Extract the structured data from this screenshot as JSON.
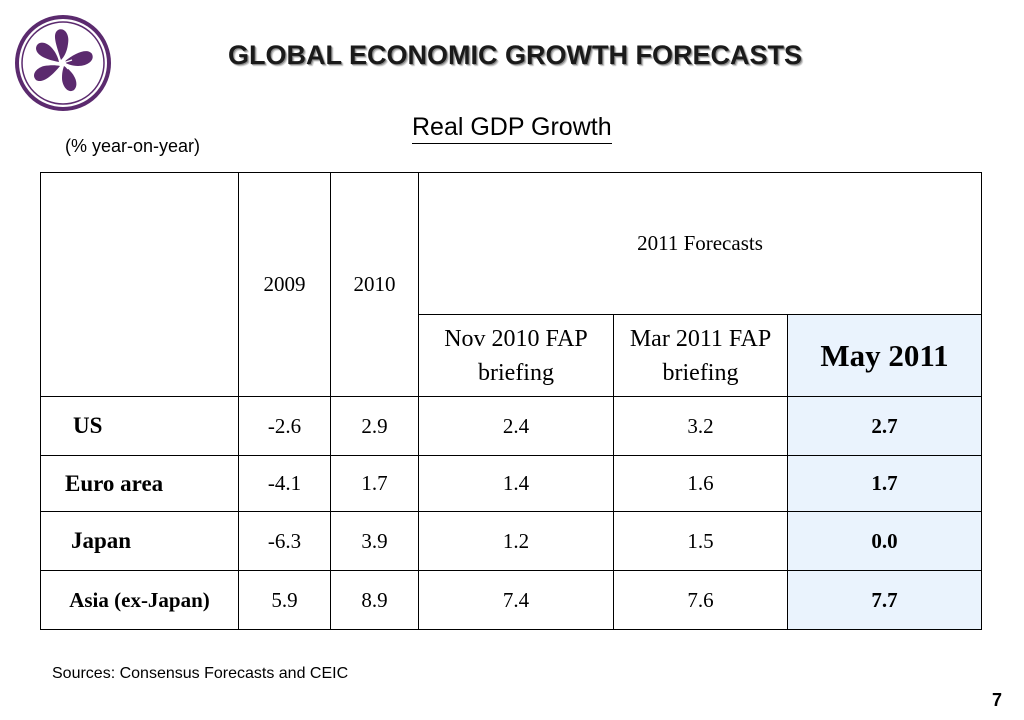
{
  "header": {
    "title": "GLOBAL ECONOMIC GROWTH FORECASTS",
    "subtitle": "Real GDP Growth",
    "units": "(% year-on-year)",
    "logo_icon": "bauhinia-flower-logo",
    "logo_color": "#5b2a6e"
  },
  "table": {
    "col_2009": "2009",
    "col_2010": "2010",
    "forecast_group": "2011 Forecasts",
    "col_nov2010": "Nov 2010 FAP briefing",
    "col_mar2011": "Mar 2011 FAP briefing",
    "col_may2011": "May 2011",
    "highlight_color": "#eaf3fd",
    "rows": [
      {
        "label": "US",
        "y2009": "-2.6",
        "y2010": "2.9",
        "nov2010": "2.4",
        "mar2011": "3.2",
        "may2011": "2.7"
      },
      {
        "label": "Euro area",
        "y2009": "-4.1",
        "y2010": "1.7",
        "nov2010": "1.4",
        "mar2011": "1.6",
        "may2011": "1.7"
      },
      {
        "label": "Japan",
        "y2009": "-6.3",
        "y2010": "3.9",
        "nov2010": "1.2",
        "mar2011": "1.5",
        "may2011": "0.0"
      },
      {
        "label": "Asia (ex-Japan)",
        "y2009": "5.9",
        "y2010": "8.9",
        "nov2010": "7.4",
        "mar2011": "7.6",
        "may2011": "7.7"
      }
    ]
  },
  "footer": {
    "sources": "Sources: Consensus Forecasts and CEIC",
    "page_number": "7"
  }
}
